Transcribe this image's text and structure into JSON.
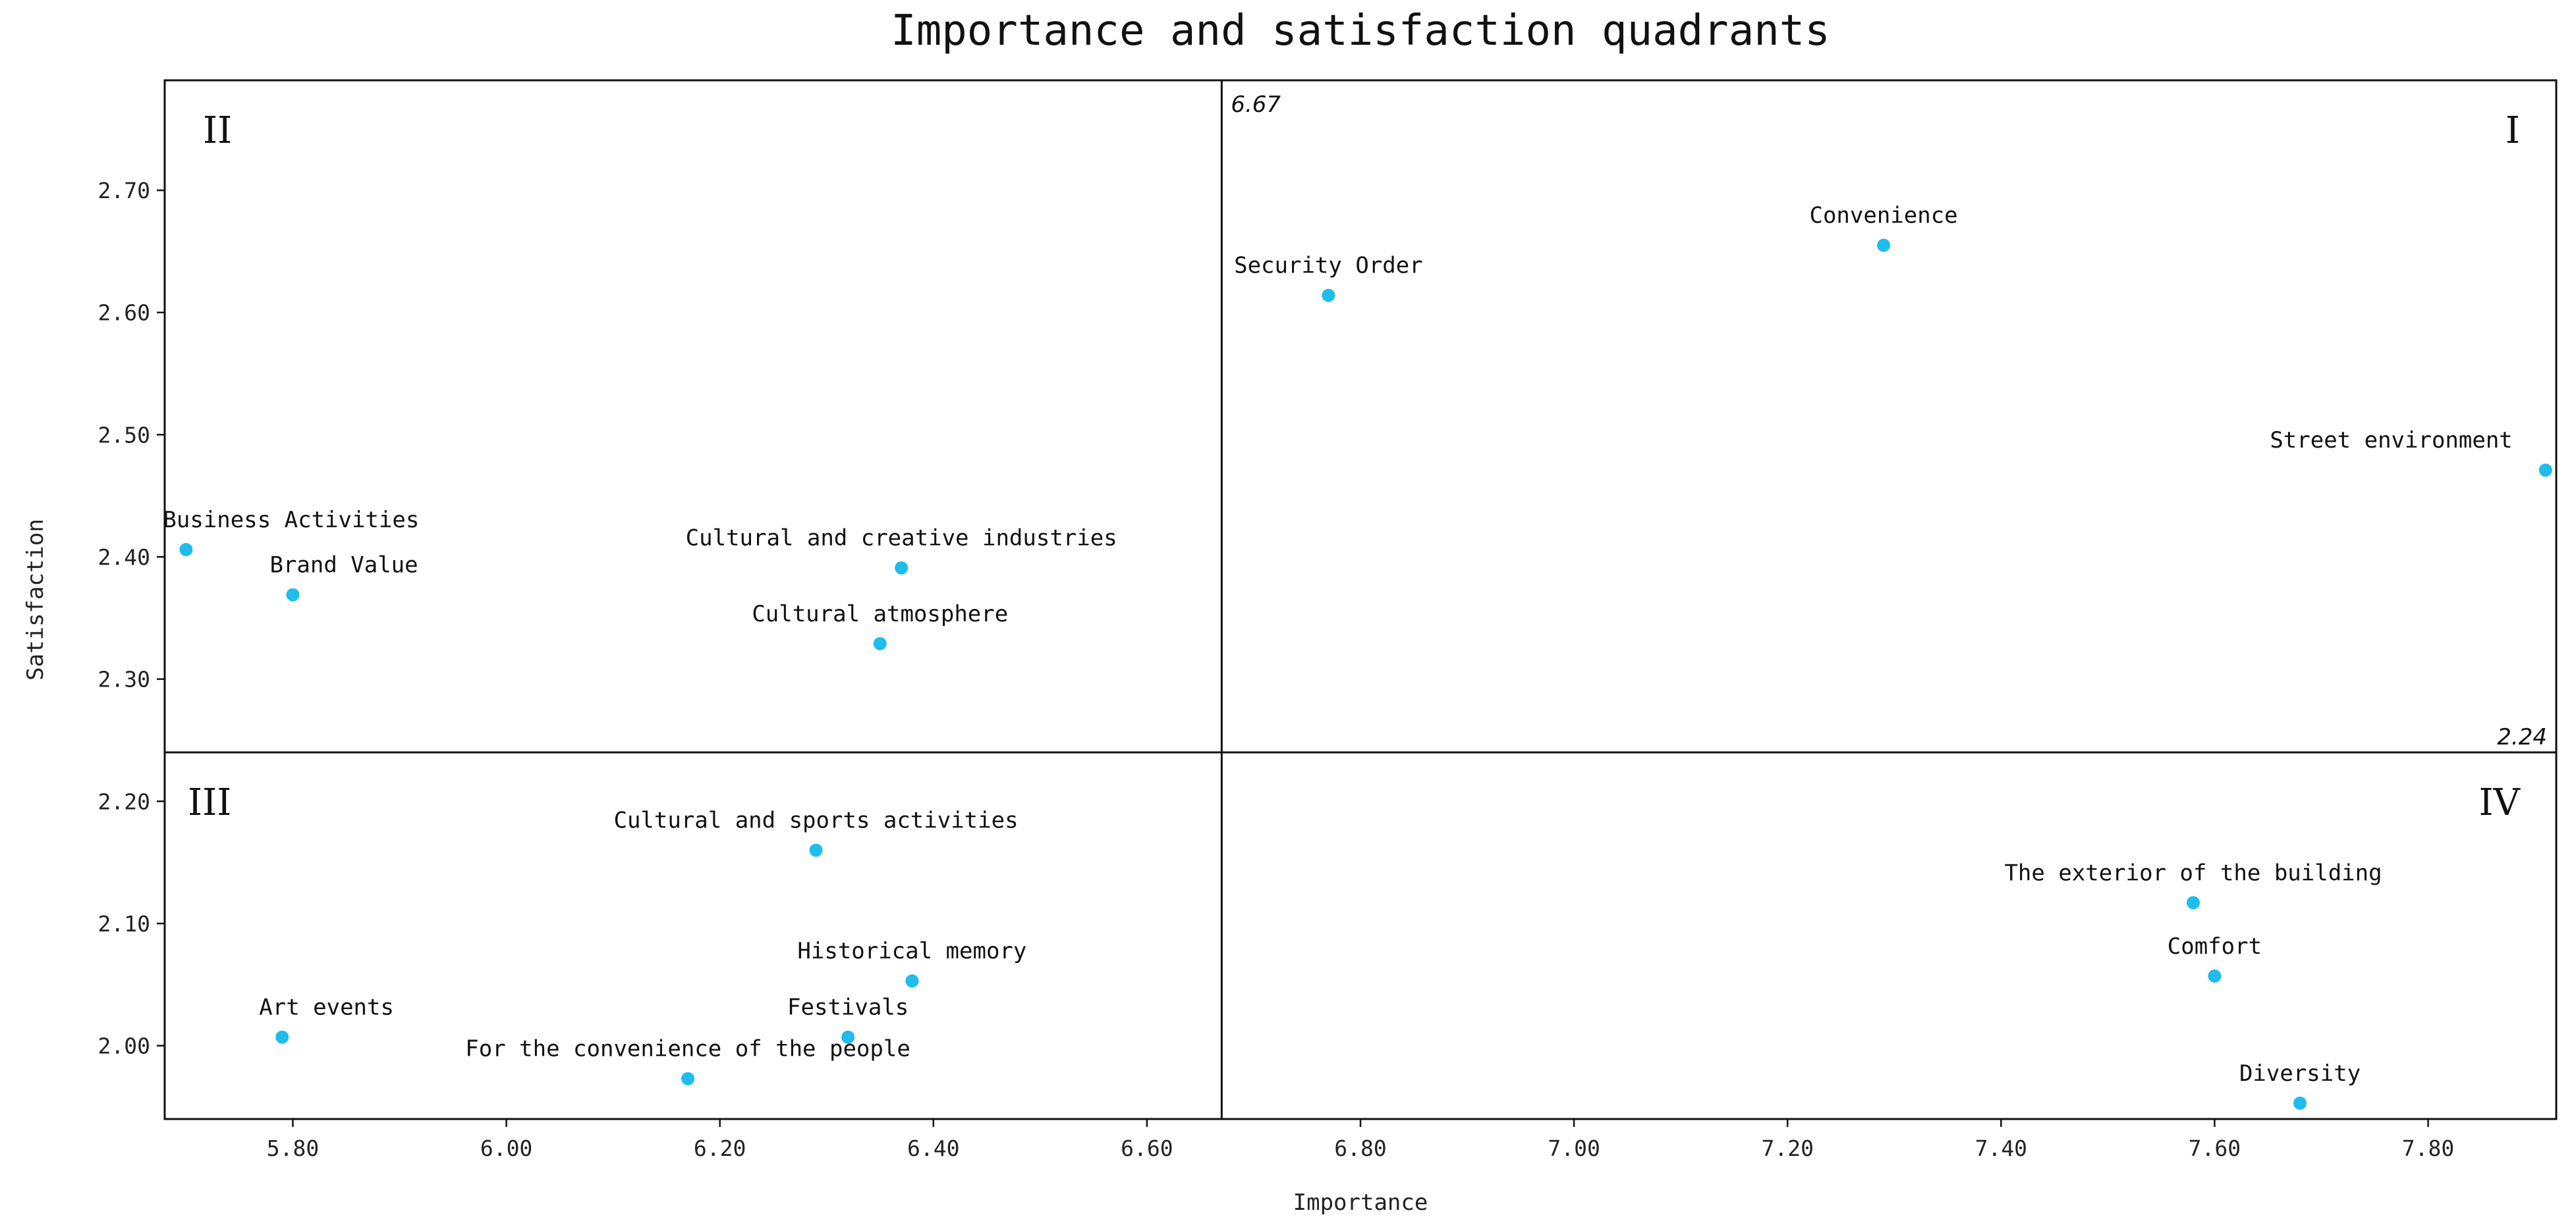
{
  "chart_data": {
    "type": "scatter",
    "title": "Importance and satisfaction quadrants",
    "xlabel": "Importance",
    "ylabel": "Satisfaction",
    "xlim": [
      5.68,
      7.92
    ],
    "ylim": [
      1.94,
      2.79
    ],
    "xticks": [
      5.8,
      6.0,
      6.2,
      6.4,
      6.6,
      6.8,
      7.0,
      7.2,
      7.4,
      7.6,
      7.8
    ],
    "xtick_labels": [
      "5.80",
      "6.00",
      "6.20",
      "6.40",
      "6.60",
      "6.80",
      "7.00",
      "7.20",
      "7.40",
      "7.60",
      "7.80"
    ],
    "yticks": [
      2.0,
      2.1,
      2.2,
      2.3,
      2.4,
      2.5,
      2.6,
      2.7
    ],
    "ytick_labels": [
      "2.00",
      "2.10",
      "2.20",
      "2.30",
      "2.40",
      "2.50",
      "2.60",
      "2.70"
    ],
    "x_threshold": 6.67,
    "y_threshold": 2.24,
    "x_threshold_label": "6.67",
    "y_threshold_label": "2.24",
    "point_color": "#1EBDEB",
    "quadrants": [
      {
        "label": "I",
        "position": "top-right"
      },
      {
        "label": "II",
        "position": "top-left"
      },
      {
        "label": "III",
        "position": "bottom-left"
      },
      {
        "label": "IV",
        "position": "bottom-right"
      }
    ],
    "points": [
      {
        "label": "Convenience",
        "x": 7.29,
        "y": 2.655
      },
      {
        "label": "Security Order",
        "x": 6.77,
        "y": 2.614
      },
      {
        "label": "Street environment",
        "x": 7.91,
        "y": 2.471
      },
      {
        "label": "Business Activities",
        "x": 5.7,
        "y": 2.406
      },
      {
        "label": "Brand Value",
        "x": 5.8,
        "y": 2.369
      },
      {
        "label": "Cultural and creative industries",
        "x": 6.37,
        "y": 2.391
      },
      {
        "label": "Cultural atmosphere",
        "x": 6.35,
        "y": 2.329
      },
      {
        "label": "Cultural and sports activities",
        "x": 6.29,
        "y": 2.16
      },
      {
        "label": "Historical memory",
        "x": 6.38,
        "y": 2.053
      },
      {
        "label": "Festivals",
        "x": 6.32,
        "y": 2.007
      },
      {
        "label": "Art events",
        "x": 5.79,
        "y": 2.007
      },
      {
        "label": "For the convenience of the people",
        "x": 6.17,
        "y": 1.973
      },
      {
        "label": "The exterior of the building",
        "x": 7.58,
        "y": 2.117
      },
      {
        "label": "Comfort",
        "x": 7.6,
        "y": 2.057
      },
      {
        "label": "Diversity",
        "x": 7.68,
        "y": 1.953
      }
    ]
  }
}
